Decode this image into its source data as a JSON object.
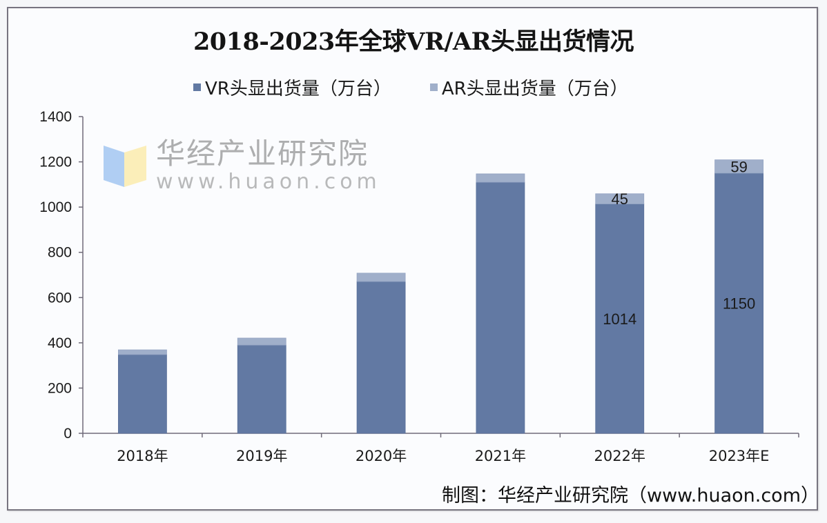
{
  "chart_data": {
    "type": "bar",
    "stacked": true,
    "title": "2018-2023年全球VR/AR头显出货情况",
    "xlabel": "",
    "ylabel": "",
    "ylim": [
      0,
      1400
    ],
    "yticks": [
      0,
      200,
      400,
      600,
      800,
      1000,
      1200,
      1400
    ],
    "grid": false,
    "legend_position": "top",
    "categories": [
      "2018年",
      "2019年",
      "2020年",
      "2021年",
      "2022年",
      "2023年E"
    ],
    "series": [
      {
        "name": "VR头显出货量（万台）",
        "color": "#6279a3",
        "values": [
          348,
          390,
          671,
          1110,
          1014,
          1150
        ],
        "labels": [
          null,
          null,
          null,
          null,
          "1014",
          "1150"
        ]
      },
      {
        "name": "AR头显出货量（万台）",
        "color": "#a0afca",
        "values": [
          21,
          31,
          37,
          37,
          45,
          59
        ],
        "labels": [
          null,
          null,
          null,
          null,
          "45",
          "59"
        ]
      }
    ]
  },
  "source": "制图：华经产业研究院（www.huaon.com）",
  "watermark": {
    "name": "华经产业研究院",
    "url": "www.huaon.com"
  }
}
